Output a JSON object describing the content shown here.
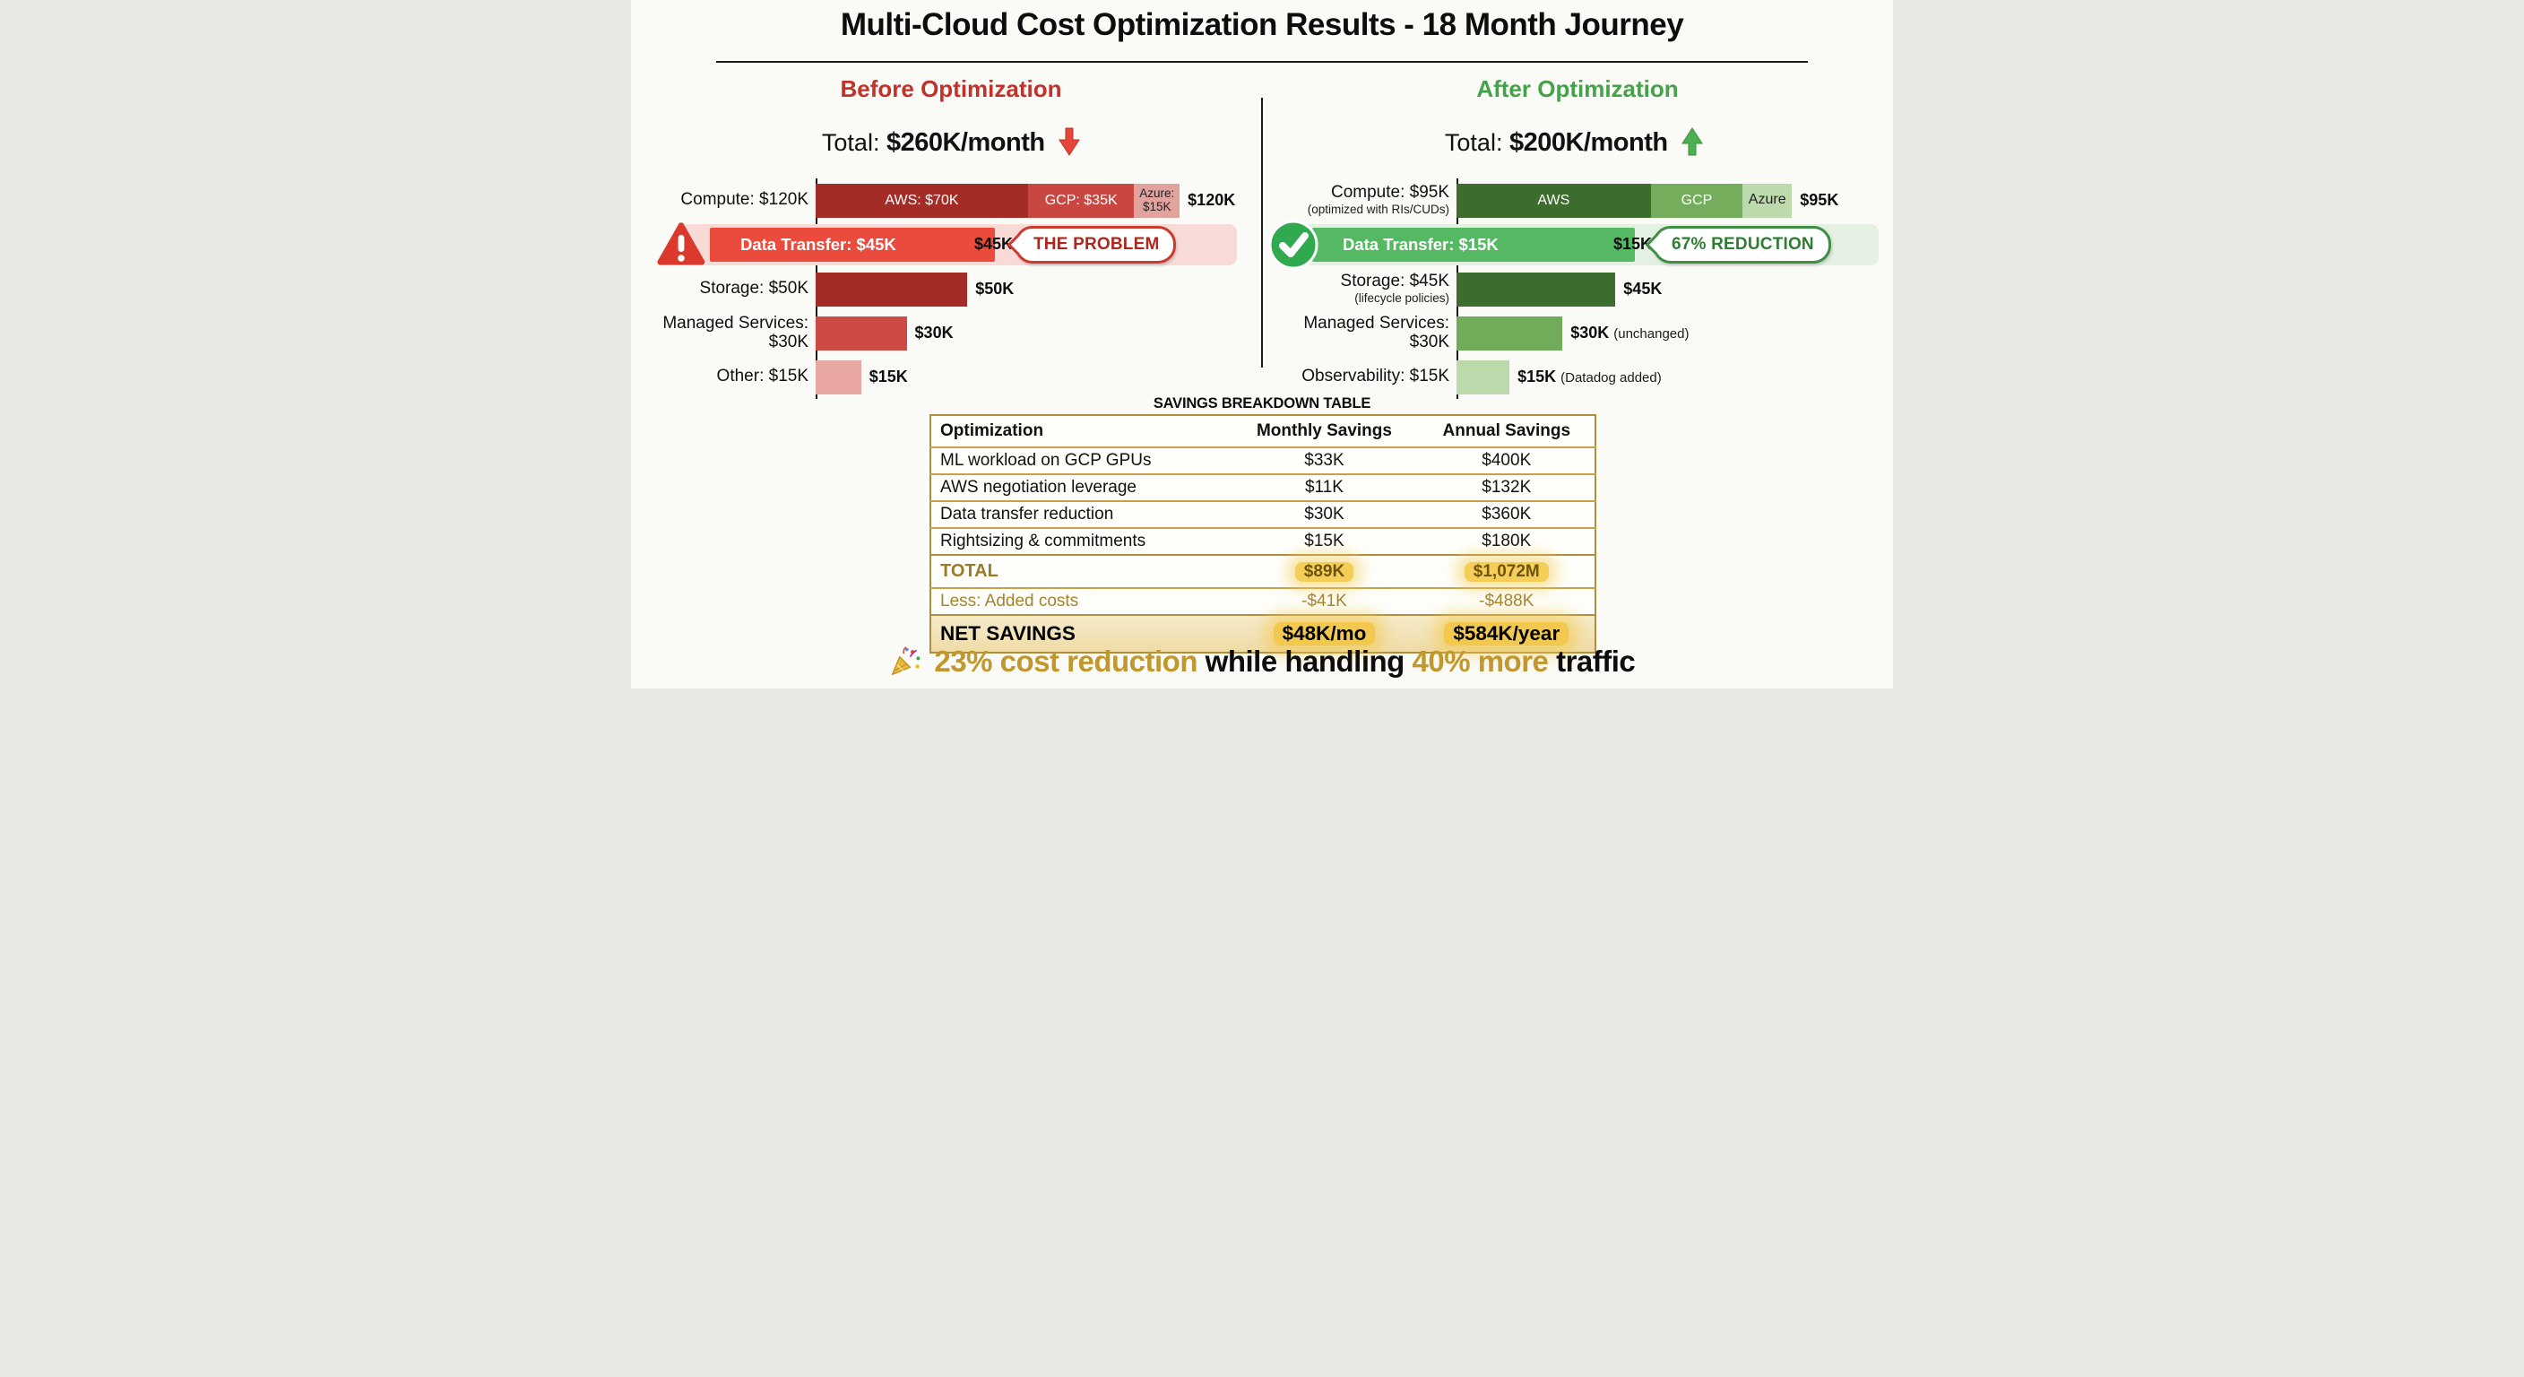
{
  "page_title": "Multi-Cloud Cost Optimization Results - 18 Month Journey",
  "chart_data": [
    {
      "type": "bar",
      "orientation": "horizontal",
      "section_title": "Before Optimization",
      "total_prefix": "Total:",
      "total_value": "$260K/month",
      "trend": "down",
      "unit": "USD thousands per month",
      "categories": [
        "Compute",
        "Data Transfer",
        "Storage",
        "Managed Services",
        "Other"
      ],
      "values": [
        120,
        45,
        50,
        30,
        15
      ],
      "rows": [
        {
          "label": "Compute: $120K",
          "k": 120,
          "value_label": "$120K",
          "segments": [
            {
              "label": "AWS: $70K",
              "k": 70
            },
            {
              "label": "GCP: $35K",
              "k": 35
            },
            {
              "label": "Azure: $15K",
              "k": 15
            }
          ]
        },
        {
          "label": "Data Transfer: $45K",
          "k": 45,
          "value_label": "$45K",
          "badge": "THE PROBLEM",
          "icon": "warning",
          "highlight": true
        },
        {
          "label": "Storage: $50K",
          "k": 50,
          "value_label": "$50K"
        },
        {
          "label": "Managed Services: $30K",
          "k": 30,
          "value_label": "$30K"
        },
        {
          "label": "Other: $15K",
          "k": 15,
          "value_label": "$15K"
        }
      ]
    },
    {
      "type": "bar",
      "orientation": "horizontal",
      "section_title": "After Optimization",
      "total_prefix": "Total:",
      "total_value": "$200K/month",
      "trend": "up",
      "unit": "USD thousands per month",
      "categories": [
        "Compute",
        "Data Transfer",
        "Storage",
        "Managed Services",
        "Observability"
      ],
      "values": [
        95,
        15,
        45,
        30,
        15
      ],
      "rows": [
        {
          "label": "Compute: $95K",
          "sublabel": "(optimized with RIs/CUDs)",
          "k": 95,
          "value_label": "$95K",
          "segments": [
            {
              "label": "AWS",
              "k": 55
            },
            {
              "label": "GCP",
              "k": 26
            },
            {
              "label": "Azure",
              "k": 14
            }
          ]
        },
        {
          "label": "Data Transfer: $15K",
          "k": 15,
          "value_label": "$15K",
          "badge": "67% REDUCTION",
          "icon": "check",
          "highlight": true
        },
        {
          "label": "Storage: $45K",
          "sublabel": "(lifecycle policies)",
          "k": 45,
          "value_label": "$45K"
        },
        {
          "label": "Managed Services: $30K",
          "k": 30,
          "value_label": "$30K",
          "value_note": "(unchanged)"
        },
        {
          "label": "Observability: $15K",
          "k": 15,
          "value_label": "$15K",
          "value_note": "(Datadog added)"
        }
      ]
    },
    {
      "type": "table",
      "title": "SAVINGS BREAKDOWN TABLE",
      "columns": [
        "Optimization",
        "Monthly Savings",
        "Annual Savings"
      ],
      "rows": [
        [
          "ML workload on GCP GPUs",
          "$33K",
          "$400K"
        ],
        [
          "AWS negotiation leverage",
          "$11K",
          "$132K"
        ],
        [
          "Data transfer reduction",
          "$30K",
          "$360K"
        ],
        [
          "Rightsizing & commitments",
          "$15K",
          "$180K"
        ]
      ],
      "total_row": {
        "label": "TOTAL",
        "monthly": "$89K",
        "annual": "$1,072M"
      },
      "less_row": {
        "label": "Less: Added costs",
        "monthly": "-$41K",
        "annual": "-$488K"
      },
      "net_row": {
        "label": "NET SAVINGS",
        "monthly": "$48K/mo",
        "annual": "$584K/year"
      }
    }
  ],
  "footer": {
    "icon": "party-popper",
    "highlight1": "23% cost reduction",
    "normal1": " while handling ",
    "highlight2": "40% more",
    "normal2": " traffic"
  },
  "colors": {
    "background": "#FAFAF6",
    "before_header_red": "#C2312A",
    "after_header_green": "#44A248",
    "red_dark": "#A32C26",
    "red_mid": "#C84841",
    "red_light": "#E2A29E",
    "red_bright": "#EA4B3D",
    "pink_band": "#F8DAD7",
    "green_dark": "#3D6C2F",
    "green_mid": "#74AE5C",
    "green_light": "#BCDAAC",
    "green_bright": "#55B963",
    "green_band": "#E4F0E2",
    "table_gold_border": "#B08E3C",
    "gold_text": "#A5842F",
    "highlight_yellow": "#F5CE58",
    "footer_gold": "#C1982E"
  }
}
